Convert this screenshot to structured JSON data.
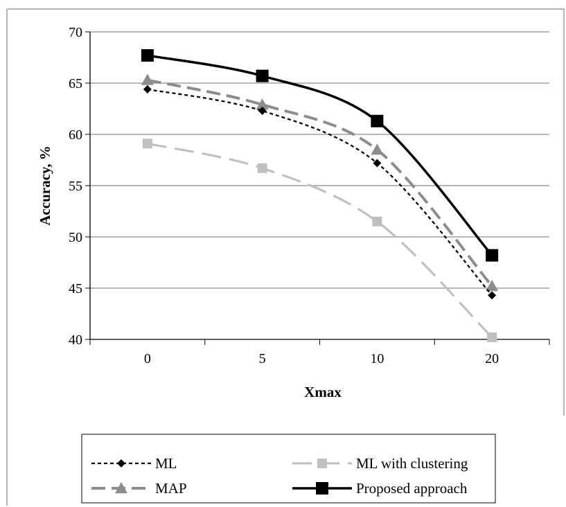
{
  "chart_data": {
    "type": "line",
    "title": "",
    "xlabel": "Xmax",
    "ylabel": "Accuracy, %",
    "categories": [
      "0",
      "5",
      "10",
      "20"
    ],
    "ylim": [
      40,
      70
    ],
    "yticks": [
      "40",
      "45",
      "50",
      "55",
      "60",
      "65",
      "70"
    ],
    "grid": "horizontal",
    "legend_position": "bottom",
    "series": [
      {
        "name": "ML",
        "values": [
          64.4,
          62.3,
          57.2,
          44.3
        ],
        "color": "#000000",
        "dash": "dotted",
        "marker": "diamond"
      },
      {
        "name": "ML with clustering",
        "values": [
          59.1,
          56.7,
          51.5,
          40.2
        ],
        "color": "#c0c0c0",
        "dash": "long-dash",
        "marker": "square"
      },
      {
        "name": "MAP",
        "values": [
          65.3,
          62.9,
          58.5,
          45.2
        ],
        "color": "#8c8c8c",
        "dash": "dashed",
        "marker": "triangle"
      },
      {
        "name": "Proposed approach",
        "values": [
          67.7,
          65.7,
          61.3,
          48.2
        ],
        "color": "#000000",
        "dash": "solid",
        "marker": "square-large"
      }
    ]
  }
}
